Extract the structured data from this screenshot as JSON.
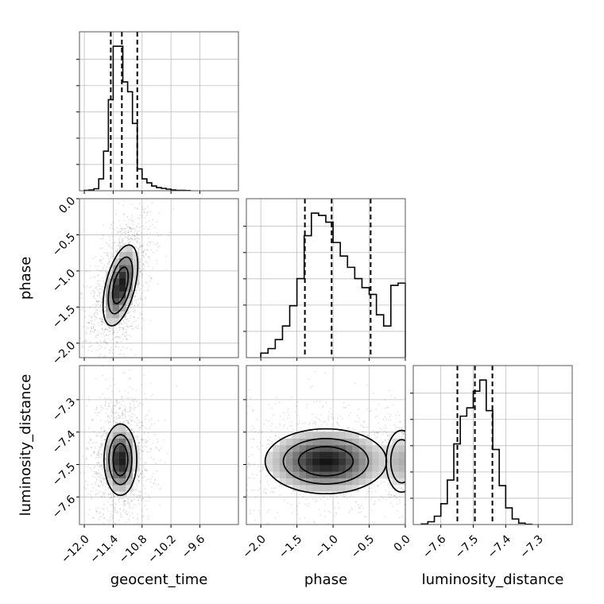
{
  "chart_data": {
    "type": "corner",
    "parameters": [
      "geocent_time",
      "phase",
      "luminosity_distance"
    ],
    "axis_labels": {
      "geocent_time": "geocent_time",
      "phase": "phase",
      "luminosity_distance": "luminosity_distance"
    },
    "ranges": {
      "geocent_time": [
        -12.1,
        -8.8
      ],
      "phase": [
        -2.2,
        0.0
      ],
      "luminosity_distance": [
        -7.685,
        -7.195
      ]
    },
    "ticks": {
      "geocent_time": {
        "values": [
          -12.0,
          -11.4,
          -10.8,
          -10.2,
          -9.6
        ],
        "labels": [
          "−12.0",
          "−11.4",
          "−10.8",
          "−10.2",
          "−9.6"
        ]
      },
      "phase": {
        "values": [
          -2.0,
          -1.5,
          -1.0,
          -0.5,
          0.0
        ],
        "labels": [
          "−2.0",
          "−1.5",
          "−1.0",
          "−0.5",
          "0.0"
        ]
      },
      "luminosity_distance": {
        "values": [
          -7.6,
          -7.5,
          -7.4,
          -7.3
        ],
        "labels": [
          "−7.6",
          "−7.5",
          "−7.4",
          "−7.3"
        ]
      }
    },
    "quantiles": {
      "geocent_time": [
        -11.45,
        -11.22,
        -10.9
      ],
      "phase": [
        -1.39,
        -1.02,
        -0.48
      ],
      "luminosity_distance": [
        -7.549,
        -7.495,
        -7.441
      ]
    },
    "histograms": {
      "geocent_time": {
        "edges": [
          -12.0,
          -11.9,
          -11.8,
          -11.7,
          -11.6,
          -11.5,
          -11.4,
          -11.3,
          -11.2,
          -11.1,
          -11.0,
          -10.9,
          -10.8,
          -10.7,
          -10.6,
          -10.5,
          -10.4,
          -10.3,
          -10.2,
          -10.1,
          -10.0,
          -9.9,
          -9.8
        ],
        "counts": [
          1,
          2,
          5,
          30,
          100,
          230,
          365,
          365,
          275,
          250,
          170,
          55,
          30,
          20,
          12,
          8,
          6,
          4,
          2,
          1,
          1,
          0.5
        ]
      },
      "phase": {
        "edges": [
          -2.0,
          -1.9,
          -1.8,
          -1.7,
          -1.6,
          -1.5,
          -1.4,
          -1.3,
          -1.2,
          -1.1,
          -1.0,
          -0.9,
          -0.8,
          -0.7,
          -0.6,
          -0.5,
          -0.4,
          -0.3,
          -0.2,
          -0.1,
          0.0
        ],
        "counts": [
          10,
          20,
          40,
          70,
          115,
          175,
          270,
          320,
          315,
          300,
          255,
          225,
          200,
          175,
          155,
          140,
          95,
          70,
          160,
          165
        ]
      },
      "luminosity_distance": {
        "edges": [
          -7.66,
          -7.64,
          -7.62,
          -7.6,
          -7.58,
          -7.56,
          -7.54,
          -7.52,
          -7.5,
          -7.48,
          -7.46,
          -7.44,
          -7.42,
          -7.4,
          -7.38,
          -7.36,
          -7.34,
          -7.32
        ],
        "counts": [
          2,
          10,
          30,
          75,
          160,
          290,
          390,
          420,
          480,
          520,
          410,
          270,
          140,
          60,
          20,
          5,
          1
        ]
      }
    },
    "pairs": [
      {
        "x": "geocent_time",
        "y": "phase",
        "center": [
          -11.25,
          -1.2
        ],
        "sd": [
          0.18,
          0.28
        ],
        "rho": 0.5,
        "extra_component": null
      },
      {
        "x": "geocent_time",
        "y": "luminosity_distance",
        "center": [
          -11.25,
          -7.485
        ],
        "sd": [
          0.17,
          0.055
        ],
        "rho": 0.0,
        "extra_component": null
      },
      {
        "x": "phase",
        "y": "luminosity_distance",
        "center": [
          -1.1,
          -7.49
        ],
        "sd": [
          0.42,
          0.05
        ],
        "rho": 0.0,
        "extra_component": [
          -0.05,
          -7.49,
          0.12,
          0.05,
          0.3
        ]
      }
    ],
    "grid": true
  }
}
